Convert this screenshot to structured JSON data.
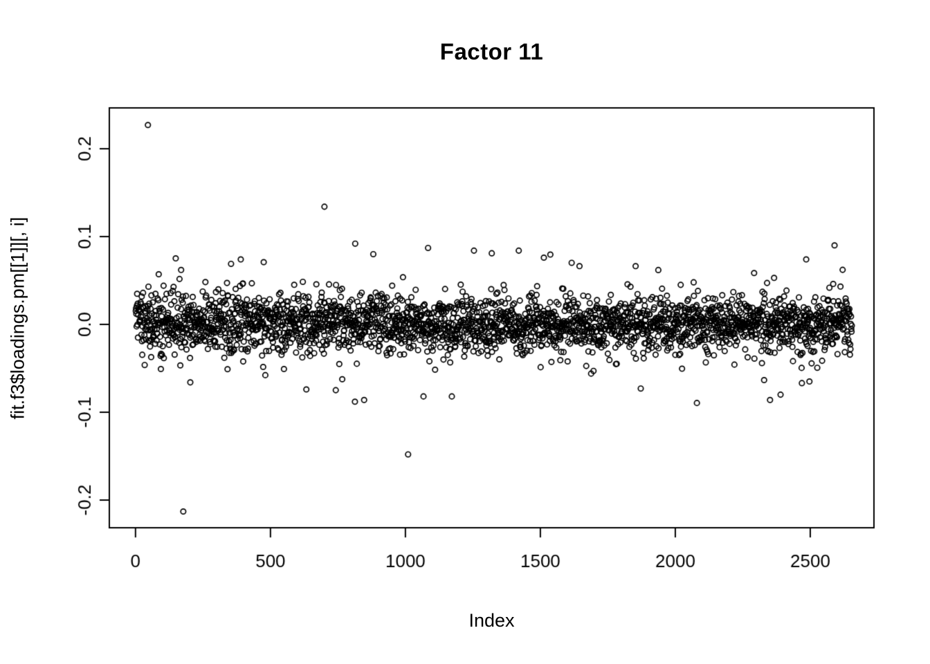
{
  "window": {
    "background_color": "#ffffff",
    "foreground_color": "#000000"
  },
  "chart_data": {
    "type": "scatter",
    "title": "Factor 11",
    "xlabel": "Index",
    "ylabel": "fit.f3$loadings.pm[[1]][, i]",
    "x_ticks": [
      0,
      500,
      1000,
      1500,
      2000,
      2500
    ],
    "y_ticks": [
      -0.2,
      -0.1,
      0.0,
      0.1,
      0.2
    ],
    "xlim": [
      -97,
      2736
    ],
    "ylim": [
      -0.2315,
      0.2465
    ],
    "grid": false,
    "legend": null,
    "style": "r-base-plot",
    "marker": {
      "shape": "open-circle",
      "color": "#000000",
      "radius_px": 3.7,
      "stroke_px": 1.7
    },
    "series_description": "Posterior-mean factor loadings for factor 11 plotted against observation index; dense zero-centred noise band with a few large outliers",
    "n_points": 2654,
    "band": {
      "mean": 0,
      "core_sd": 0.0155,
      "tail_sd": 0.032,
      "tail_fraction": 0.075,
      "left_widen": 0.3,
      "left_scale": 420,
      "clamp_abs": 0.092,
      "seed": 1311
    },
    "notable_points": [
      {
        "x": 46,
        "y": 0.227
      },
      {
        "x": 177,
        "y": -0.213
      },
      {
        "x": 700,
        "y": 0.134
      },
      {
        "x": 1010,
        "y": -0.148
      },
      {
        "x": 169,
        "y": 0.062
      },
      {
        "x": 390,
        "y": 0.074
      },
      {
        "x": 881,
        "y": 0.08
      },
      {
        "x": 1254,
        "y": 0.084
      },
      {
        "x": 1320,
        "y": 0.081
      },
      {
        "x": 1420,
        "y": 0.084
      },
      {
        "x": 1513,
        "y": 0.076
      },
      {
        "x": 2485,
        "y": 0.074
      },
      {
        "x": 2590,
        "y": 0.09
      },
      {
        "x": 203,
        "y": -0.066
      },
      {
        "x": 633,
        "y": -0.074
      },
      {
        "x": 813,
        "y": -0.088
      },
      {
        "x": 1067,
        "y": -0.082
      },
      {
        "x": 1172,
        "y": -0.082
      },
      {
        "x": 1872,
        "y": -0.073
      },
      {
        "x": 2351,
        "y": -0.086
      },
      {
        "x": 2390,
        "y": -0.08
      },
      {
        "x": 2497,
        "y": -0.065
      }
    ]
  }
}
